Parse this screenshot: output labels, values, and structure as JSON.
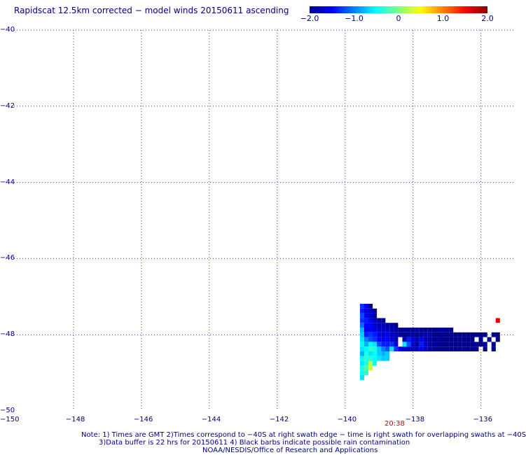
{
  "title": "Rapidscat 12.5km corrected − model winds 20150611 ascending",
  "colorbar": {
    "min": -2.0,
    "max": 2.0,
    "ticks": [
      "−2.0",
      "−1.0",
      "0",
      "1.0",
      "2.0"
    ],
    "tick_values": [
      -2.0,
      -1.0,
      0,
      1.0,
      2.0
    ],
    "colors": [
      "#00008b",
      "#0000ff",
      "#0080ff",
      "#00ffff",
      "#80ff80",
      "#ffff00",
      "#ff8000",
      "#ff0000",
      "#8b0000"
    ]
  },
  "map": {
    "lon_range": [
      -150,
      -135
    ],
    "lat_range": [
      -50,
      -40
    ],
    "lon_ticks": [
      -148,
      -146,
      -144,
      -142,
      -140,
      -138,
      -136
    ],
    "lat_ticks": [
      -40,
      -42,
      -44,
      -46,
      -48
    ],
    "lon_labels": [
      "−150",
      "−148",
      "−146",
      "−144",
      "−142",
      "−140",
      "−138",
      "−136"
    ],
    "lat_labels": [
      "−40",
      "−42",
      "−44",
      "−46",
      "−48",
      "−50"
    ],
    "grid": "dotted"
  },
  "swath_time": "20:38",
  "notes": {
    "line1": "Note: 1) Times are GMT 2)Times correspond to −40S at right swath edge − time is right swath for overlapping swaths at −40S",
    "line2": "3)Data buffer is 22 hrs for 20150611 4) Black barbs indicate possible rain contamination",
    "line3": "NOAA/NESDIS/Office of Research and Applications"
  },
  "chart_data": {
    "type": "heatmap",
    "title": "Rapidscat 12.5km corrected − model winds 20150611 ascending",
    "xlabel": "",
    "ylabel": "",
    "xlim": [
      -150,
      -135
    ],
    "ylim": [
      -50,
      -40
    ],
    "value_range": [
      -2.0,
      2.0
    ],
    "cell_size_deg": 0.125,
    "cells": [
      {
        "lon": -139.5,
        "lat": -47.25,
        "v": -1.3
      },
      {
        "lon": -139.375,
        "lat": -47.25,
        "v": -1.5
      },
      {
        "lon": -139.25,
        "lat": -47.25,
        "v": -1.9
      },
      {
        "lon": -139.5,
        "lat": -47.375,
        "v": -1.4
      },
      {
        "lon": -139.375,
        "lat": -47.375,
        "v": -1.6
      },
      {
        "lon": -139.25,
        "lat": -47.375,
        "v": -1.8
      },
      {
        "lon": -139.125,
        "lat": -47.375,
        "v": -1.9
      },
      {
        "lon": -139.5,
        "lat": -47.5,
        "v": -1.2
      },
      {
        "lon": -139.375,
        "lat": -47.5,
        "v": -1.6
      },
      {
        "lon": -139.25,
        "lat": -47.5,
        "v": -1.7
      },
      {
        "lon": -139.125,
        "lat": -47.5,
        "v": -1.9
      },
      {
        "lon": -139.5,
        "lat": -47.625,
        "v": -1.3
      },
      {
        "lon": -139.375,
        "lat": -47.625,
        "v": -1.4
      },
      {
        "lon": -139.25,
        "lat": -47.625,
        "v": -1.6
      },
      {
        "lon": -139.125,
        "lat": -47.625,
        "v": -1.8
      },
      {
        "lon": -139.0,
        "lat": -47.625,
        "v": -1.9
      },
      {
        "lon": -138.875,
        "lat": -47.625,
        "v": -1.9
      },
      {
        "lon": -139.5,
        "lat": -47.75,
        "v": -1.1
      },
      {
        "lon": -139.375,
        "lat": -47.75,
        "v": -1.5
      },
      {
        "lon": -139.25,
        "lat": -47.75,
        "v": -1.5
      },
      {
        "lon": -139.125,
        "lat": -47.75,
        "v": -1.7
      },
      {
        "lon": -139.0,
        "lat": -47.75,
        "v": -1.8
      },
      {
        "lon": -138.875,
        "lat": -47.75,
        "v": -1.8
      },
      {
        "lon": -138.75,
        "lat": -47.75,
        "v": -1.9
      },
      {
        "lon": -138.625,
        "lat": -47.75,
        "v": -1.9
      },
      {
        "lon": -138.5,
        "lat": -47.75,
        "v": -2.0
      },
      {
        "lon": -139.5,
        "lat": -47.875,
        "v": -0.8
      },
      {
        "lon": -139.375,
        "lat": -47.875,
        "v": -1.6
      },
      {
        "lon": -139.25,
        "lat": -47.875,
        "v": -1.5
      },
      {
        "lon": -139.125,
        "lat": -47.875,
        "v": -1.6
      },
      {
        "lon": -139.0,
        "lat": -47.875,
        "v": -1.7
      },
      {
        "lon": -138.875,
        "lat": -47.875,
        "v": -1.7
      },
      {
        "lon": -138.75,
        "lat": -47.875,
        "v": -1.8
      },
      {
        "lon": -138.625,
        "lat": -47.875,
        "v": -1.8
      },
      {
        "lon": -138.5,
        "lat": -47.875,
        "v": -1.9
      },
      {
        "lon": -138.375,
        "lat": -47.875,
        "v": -2.0
      },
      {
        "lon": -138.25,
        "lat": -47.875,
        "v": -1.9
      },
      {
        "lon": -138.125,
        "lat": -47.875,
        "v": -2.0
      },
      {
        "lon": -138.0,
        "lat": -47.875,
        "v": -2.0
      },
      {
        "lon": -137.875,
        "lat": -47.875,
        "v": -1.9
      },
      {
        "lon": -137.75,
        "lat": -47.875,
        "v": -2.0
      },
      {
        "lon": -137.625,
        "lat": -47.875,
        "v": -2.0
      },
      {
        "lon": -137.5,
        "lat": -47.875,
        "v": -2.0
      },
      {
        "lon": -137.375,
        "lat": -47.875,
        "v": -2.0
      },
      {
        "lon": -137.25,
        "lat": -47.875,
        "v": -2.0
      },
      {
        "lon": -137.125,
        "lat": -47.875,
        "v": -1.9
      },
      {
        "lon": -137.0,
        "lat": -47.875,
        "v": -2.0
      },
      {
        "lon": -136.875,
        "lat": -47.875,
        "v": -2.0
      },
      {
        "lon": -139.5,
        "lat": -48.0,
        "v": -0.7
      },
      {
        "lon": -139.375,
        "lat": -48.0,
        "v": -1.4
      },
      {
        "lon": -139.25,
        "lat": -48.0,
        "v": -1.3
      },
      {
        "lon": -139.125,
        "lat": -48.0,
        "v": -1.4
      },
      {
        "lon": -139.0,
        "lat": -48.0,
        "v": -1.6
      },
      {
        "lon": -138.875,
        "lat": -48.0,
        "v": -1.7
      },
      {
        "lon": -138.75,
        "lat": -48.0,
        "v": -1.6
      },
      {
        "lon": -138.625,
        "lat": -48.0,
        "v": -1.8
      },
      {
        "lon": -138.5,
        "lat": -48.0,
        "v": -1.8
      },
      {
        "lon": -138.375,
        "lat": -48.0,
        "v": -1.9
      },
      {
        "lon": -138.25,
        "lat": -48.0,
        "v": -2.0
      },
      {
        "lon": -138.125,
        "lat": -48.0,
        "v": -1.9
      },
      {
        "lon": -138.0,
        "lat": -48.0,
        "v": -1.9
      },
      {
        "lon": -137.875,
        "lat": -48.0,
        "v": -2.0
      },
      {
        "lon": -137.75,
        "lat": -48.0,
        "v": -1.9
      },
      {
        "lon": -137.625,
        "lat": -48.0,
        "v": -1.8
      },
      {
        "lon": -137.5,
        "lat": -48.0,
        "v": -1.9
      },
      {
        "lon": -137.375,
        "lat": -48.0,
        "v": -2.0
      },
      {
        "lon": -137.25,
        "lat": -48.0,
        "v": -2.0
      },
      {
        "lon": -137.125,
        "lat": -48.0,
        "v": -2.0
      },
      {
        "lon": -137.0,
        "lat": -48.0,
        "v": -2.0
      },
      {
        "lon": -136.875,
        "lat": -48.0,
        "v": -2.0
      },
      {
        "lon": -136.75,
        "lat": -48.0,
        "v": -2.0
      },
      {
        "lon": -136.625,
        "lat": -48.0,
        "v": -2.0
      },
      {
        "lon": -136.5,
        "lat": -48.0,
        "v": -2.0
      },
      {
        "lon": -136.375,
        "lat": -48.0,
        "v": -2.0
      },
      {
        "lon": -136.25,
        "lat": -48.0,
        "v": -2.0
      },
      {
        "lon": -136.125,
        "lat": -48.0,
        "v": -2.0
      },
      {
        "lon": -136.0,
        "lat": -48.0,
        "v": -2.0
      },
      {
        "lon": -135.875,
        "lat": -48.0,
        "v": -2.0
      },
      {
        "lon": -135.625,
        "lat": -48.0,
        "v": -2.0
      },
      {
        "lon": -135.5,
        "lat": -48.0,
        "v": -2.0
      },
      {
        "lon": -139.5,
        "lat": -48.125,
        "v": -0.6
      },
      {
        "lon": -139.375,
        "lat": -48.125,
        "v": -1.0
      },
      {
        "lon": -139.25,
        "lat": -48.125,
        "v": -1.2
      },
      {
        "lon": -139.125,
        "lat": -48.125,
        "v": -1.3
      },
      {
        "lon": -139.0,
        "lat": -48.125,
        "v": -1.5
      },
      {
        "lon": -138.875,
        "lat": -48.125,
        "v": -1.6
      },
      {
        "lon": -138.75,
        "lat": -48.125,
        "v": -1.5
      },
      {
        "lon": -138.625,
        "lat": -48.125,
        "v": -1.7
      },
      {
        "lon": -138.5,
        "lat": -48.125,
        "v": -1.8
      },
      {
        "lon": -138.25,
        "lat": -48.125,
        "v": -1.8
      },
      {
        "lon": -138.125,
        "lat": -48.125,
        "v": -1.4
      },
      {
        "lon": -138.0,
        "lat": -48.125,
        "v": -1.7
      },
      {
        "lon": -137.875,
        "lat": -48.125,
        "v": -1.8
      },
      {
        "lon": -137.75,
        "lat": -48.125,
        "v": -1.6
      },
      {
        "lon": -137.625,
        "lat": -48.125,
        "v": -1.9
      },
      {
        "lon": -137.5,
        "lat": -48.125,
        "v": -1.9
      },
      {
        "lon": -137.375,
        "lat": -48.125,
        "v": -2.0
      },
      {
        "lon": -137.25,
        "lat": -48.125,
        "v": -1.9
      },
      {
        "lon": -137.125,
        "lat": -48.125,
        "v": -2.0
      },
      {
        "lon": -137.0,
        "lat": -48.125,
        "v": -2.0
      },
      {
        "lon": -136.875,
        "lat": -48.125,
        "v": -2.0
      },
      {
        "lon": -136.75,
        "lat": -48.125,
        "v": -2.0
      },
      {
        "lon": -136.625,
        "lat": -48.125,
        "v": -2.0
      },
      {
        "lon": -136.5,
        "lat": -48.125,
        "v": -2.0
      },
      {
        "lon": -136.375,
        "lat": -48.125,
        "v": -2.0
      },
      {
        "lon": -136.25,
        "lat": -48.125,
        "v": -2.0
      },
      {
        "lon": -136.0,
        "lat": -48.125,
        "v": -2.0
      },
      {
        "lon": -135.75,
        "lat": -48.125,
        "v": -2.0
      },
      {
        "lon": -135.5,
        "lat": -48.125,
        "v": -2.0
      },
      {
        "lon": -139.5,
        "lat": -48.25,
        "v": -0.5
      },
      {
        "lon": -139.375,
        "lat": -48.25,
        "v": -0.8
      },
      {
        "lon": -139.25,
        "lat": -48.25,
        "v": -0.5
      },
      {
        "lon": -139.125,
        "lat": -48.25,
        "v": -0.6
      },
      {
        "lon": -139.0,
        "lat": -48.25,
        "v": -1.2
      },
      {
        "lon": -138.875,
        "lat": -48.25,
        "v": -1.4
      },
      {
        "lon": -138.75,
        "lat": -48.25,
        "v": -1.4
      },
      {
        "lon": -138.625,
        "lat": -48.25,
        "v": -1.3
      },
      {
        "lon": -138.5,
        "lat": -48.25,
        "v": -1.6
      },
      {
        "lon": -138.25,
        "lat": -48.25,
        "v": -0.6
      },
      {
        "lon": -138.125,
        "lat": -48.25,
        "v": -1.2
      },
      {
        "lon": -138.0,
        "lat": -48.25,
        "v": -1.7
      },
      {
        "lon": -137.875,
        "lat": -48.25,
        "v": -1.9
      },
      {
        "lon": -137.75,
        "lat": -48.25,
        "v": -1.4
      },
      {
        "lon": -137.625,
        "lat": -48.25,
        "v": -1.7
      },
      {
        "lon": -137.5,
        "lat": -48.25,
        "v": -1.9
      },
      {
        "lon": -137.375,
        "lat": -48.25,
        "v": -1.9
      },
      {
        "lon": -137.25,
        "lat": -48.25,
        "v": -2.0
      },
      {
        "lon": -137.125,
        "lat": -48.25,
        "v": -2.0
      },
      {
        "lon": -137.0,
        "lat": -48.25,
        "v": -2.0
      },
      {
        "lon": -136.875,
        "lat": -48.25,
        "v": -2.0
      },
      {
        "lon": -136.75,
        "lat": -48.25,
        "v": -2.0
      },
      {
        "lon": -136.625,
        "lat": -48.25,
        "v": -2.0
      },
      {
        "lon": -136.5,
        "lat": -48.25,
        "v": -2.0
      },
      {
        "lon": -136.375,
        "lat": -48.25,
        "v": -2.0
      },
      {
        "lon": -136.25,
        "lat": -48.25,
        "v": -2.0
      },
      {
        "lon": -136.125,
        "lat": -48.25,
        "v": -2.0
      },
      {
        "lon": -136.0,
        "lat": -48.25,
        "v": -2.0
      },
      {
        "lon": -135.875,
        "lat": -48.25,
        "v": -2.0
      },
      {
        "lon": -135.625,
        "lat": -48.25,
        "v": -2.0
      },
      {
        "lon": -139.5,
        "lat": -48.375,
        "v": -0.6
      },
      {
        "lon": -139.375,
        "lat": -48.375,
        "v": -0.5
      },
      {
        "lon": -139.25,
        "lat": -48.375,
        "v": -0.3
      },
      {
        "lon": -139.125,
        "lat": -48.375,
        "v": -0.4
      },
      {
        "lon": -139.0,
        "lat": -48.375,
        "v": -0.7
      },
      {
        "lon": -138.875,
        "lat": -48.375,
        "v": -1.0
      },
      {
        "lon": -138.75,
        "lat": -48.375,
        "v": -1.2
      },
      {
        "lon": -138.625,
        "lat": -48.375,
        "v": -0.6
      },
      {
        "lon": -138.5,
        "lat": -48.375,
        "v": -1.3
      },
      {
        "lon": -138.375,
        "lat": -48.375,
        "v": -1.6
      },
      {
        "lon": -138.25,
        "lat": -48.375,
        "v": -1.7
      },
      {
        "lon": -138.125,
        "lat": -48.375,
        "v": -1.8
      },
      {
        "lon": -138.0,
        "lat": -48.375,
        "v": -1.8
      },
      {
        "lon": -137.875,
        "lat": -48.375,
        "v": -1.8
      },
      {
        "lon": -137.75,
        "lat": -48.375,
        "v": -1.6
      },
      {
        "lon": -137.625,
        "lat": -48.375,
        "v": -1.8
      },
      {
        "lon": -137.5,
        "lat": -48.375,
        "v": -1.9
      },
      {
        "lon": -137.375,
        "lat": -48.375,
        "v": -2.0
      },
      {
        "lon": -137.25,
        "lat": -48.375,
        "v": -2.0
      },
      {
        "lon": -137.125,
        "lat": -48.375,
        "v": -2.0
      },
      {
        "lon": -137.0,
        "lat": -48.375,
        "v": -2.0
      },
      {
        "lon": -136.875,
        "lat": -48.375,
        "v": -2.0
      },
      {
        "lon": -136.75,
        "lat": -48.375,
        "v": -2.0
      },
      {
        "lon": -136.625,
        "lat": -48.375,
        "v": -2.0
      },
      {
        "lon": -136.5,
        "lat": -48.375,
        "v": -2.0
      },
      {
        "lon": -136.375,
        "lat": -48.375,
        "v": -2.0
      },
      {
        "lon": -136.25,
        "lat": -48.375,
        "v": -2.0
      },
      {
        "lon": -136.125,
        "lat": -48.375,
        "v": -2.0
      },
      {
        "lon": -135.875,
        "lat": -48.375,
        "v": -2.0
      },
      {
        "lon": -135.625,
        "lat": -48.375,
        "v": -2.0
      },
      {
        "lon": -139.5,
        "lat": -48.5,
        "v": -0.8
      },
      {
        "lon": -139.375,
        "lat": -48.5,
        "v": -0.4
      },
      {
        "lon": -139.25,
        "lat": -48.5,
        "v": -0.6
      },
      {
        "lon": -139.125,
        "lat": -48.5,
        "v": -0.5
      },
      {
        "lon": -139.0,
        "lat": -48.5,
        "v": -0.7
      },
      {
        "lon": -138.875,
        "lat": -48.5,
        "v": -0.8
      },
      {
        "lon": -138.75,
        "lat": -48.5,
        "v": -0.7
      },
      {
        "lon": -139.5,
        "lat": -48.625,
        "v": -0.5
      },
      {
        "lon": -139.375,
        "lat": -48.625,
        "v": -0.3
      },
      {
        "lon": -139.25,
        "lat": -48.625,
        "v": -0.4
      },
      {
        "lon": -139.125,
        "lat": -48.625,
        "v": -0.5
      },
      {
        "lon": -139.0,
        "lat": -48.625,
        "v": -0.6
      },
      {
        "lon": -138.875,
        "lat": -48.625,
        "v": -0.7
      },
      {
        "lon": -138.75,
        "lat": -48.625,
        "v": -0.7
      },
      {
        "lon": -139.5,
        "lat": -48.75,
        "v": -0.6
      },
      {
        "lon": -139.375,
        "lat": -48.75,
        "v": -0.4
      },
      {
        "lon": -139.25,
        "lat": -48.75,
        "v": 0.2
      },
      {
        "lon": -139.125,
        "lat": -48.75,
        "v": -0.5
      },
      {
        "lon": -139.5,
        "lat": -48.875,
        "v": -0.4
      },
      {
        "lon": -139.375,
        "lat": -48.875,
        "v": -0.2
      },
      {
        "lon": -139.25,
        "lat": -48.875,
        "v": 0.3
      },
      {
        "lon": -139.5,
        "lat": -49.0,
        "v": -0.5
      },
      {
        "lon": -139.375,
        "lat": -49.0,
        "v": -0.3
      },
      {
        "lon": -139.5,
        "lat": -49.125,
        "v": -0.6
      },
      {
        "lon": -135.5,
        "lat": -47.625,
        "v": 1.6
      }
    ]
  }
}
